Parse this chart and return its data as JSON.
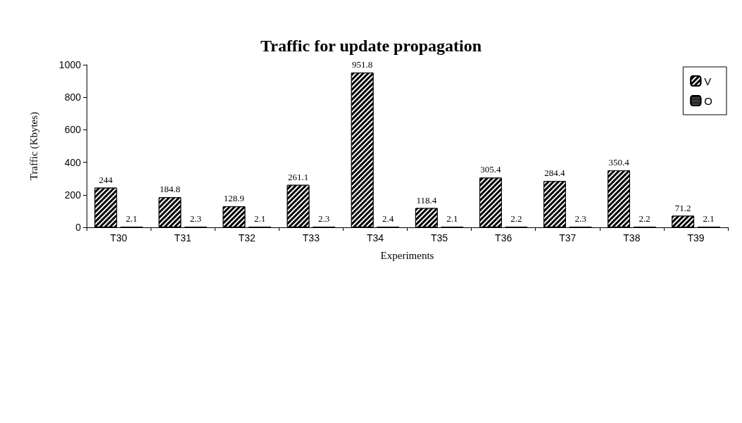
{
  "chart_data": {
    "type": "bar",
    "title": "Traffic for update propagation",
    "xlabel": "Experiments",
    "ylabel": "Traffic (Kbytes)",
    "categories": [
      "T30",
      "T31",
      "T32",
      "T33",
      "T34",
      "T35",
      "T36",
      "T37",
      "T38",
      "T39"
    ],
    "series": [
      {
        "name": "V",
        "color": "#000000",
        "values": [
          244,
          184.8,
          128.9,
          261.1,
          951.8,
          118.4,
          305.4,
          284.4,
          350.4,
          71.2
        ]
      },
      {
        "name": "O",
        "color": "#000000",
        "values": [
          2.1,
          2.3,
          2.1,
          2.3,
          2.4,
          2.1,
          2.2,
          2.3,
          2.2,
          2.1
        ]
      }
    ],
    "ylim": [
      0,
      1000
    ],
    "yticks": [
      0,
      200,
      400,
      600,
      800,
      1000
    ],
    "grid": false,
    "legend": "top right",
    "data_labels": true
  }
}
